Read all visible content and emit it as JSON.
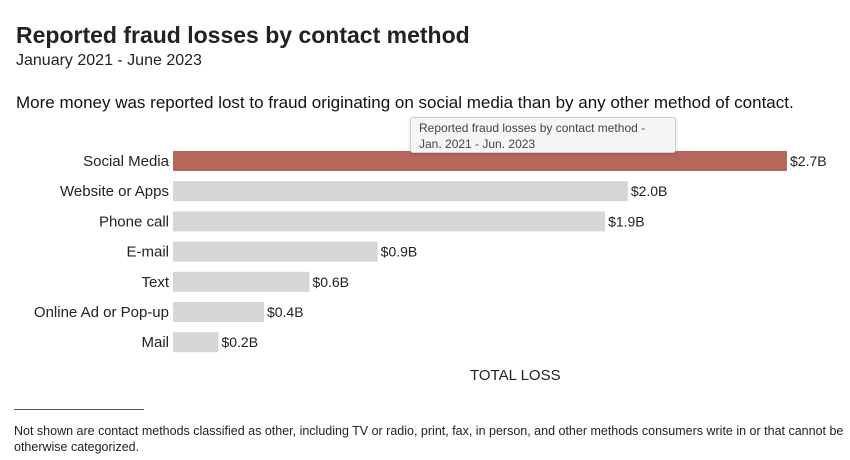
{
  "header": {
    "title": "Reported fraud losses by contact method",
    "subtitle": "January 2021 - June 2023",
    "headline": "More money was reported lost to fraud originating on social media than by any other method of contact."
  },
  "tooltip": {
    "line1": "Reported fraud losses by contact method -",
    "line2": "Jan. 2021 - Jun. 2023"
  },
  "colors": {
    "highlight": "#b5675c",
    "bar": "#d6d6d6"
  },
  "chart_data": {
    "type": "bar",
    "orientation": "horizontal",
    "title": "Reported fraud losses by contact method",
    "subtitle": "January 2021 - June 2023",
    "xlabel": "TOTAL LOSS",
    "ylabel": "",
    "categories": [
      "Social Media",
      "Website or Apps",
      "Phone call",
      "E-mail",
      "Text",
      "Online Ad or Pop-up",
      "Mail"
    ],
    "values": [
      2.7,
      2.0,
      1.9,
      0.9,
      0.6,
      0.4,
      0.2
    ],
    "value_labels": [
      "$2.7B",
      "$2.0B",
      "$1.9B",
      "$0.9B",
      "$0.6B",
      "$0.4B",
      "$0.2B"
    ],
    "highlight_index": 0,
    "xlim": [
      0,
      2.7
    ],
    "grid": false,
    "legend": "none"
  },
  "footnote": "Not shown are contact methods classified as other, including TV or radio, print, fax, in person, and other methods consumers write in or that cannot be otherwise categorized."
}
